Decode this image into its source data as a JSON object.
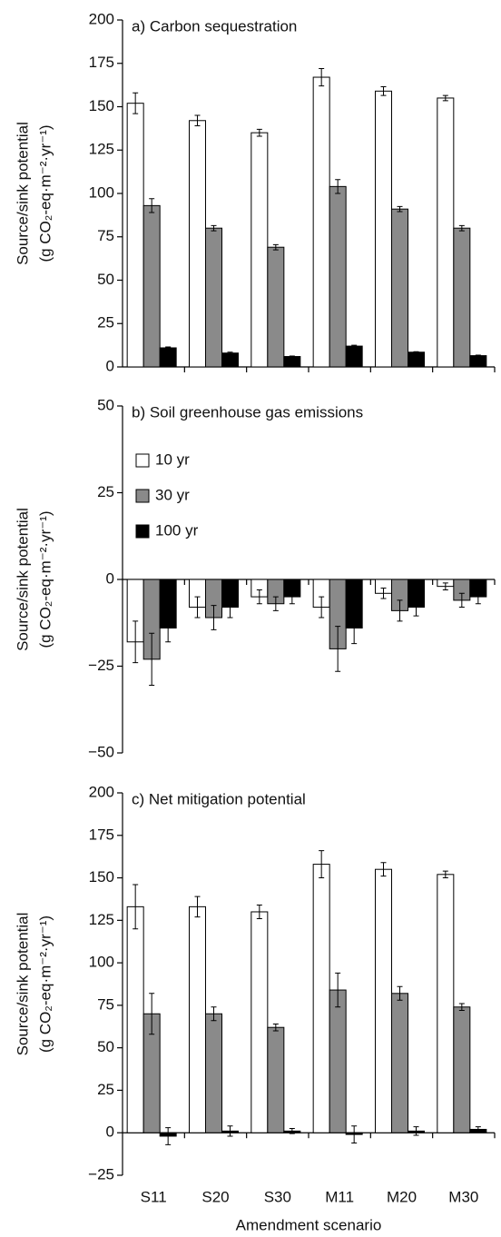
{
  "chart_data": [
    {
      "type": "bar",
      "title": "a) Carbon sequestration",
      "y_label": [
        "Source/sink potential",
        "(g CO₂-eq·m⁻²·yr⁻¹)"
      ],
      "ylim": [
        0,
        200
      ],
      "yticks": [
        0,
        25,
        50,
        75,
        100,
        125,
        150,
        175,
        200
      ],
      "series": [
        {
          "color": "#ffffff",
          "values": [
            152,
            142,
            135,
            167,
            159,
            155
          ],
          "errors": [
            6,
            3,
            2,
            5,
            2.5,
            1.5
          ]
        },
        {
          "color": "#8a8a8a",
          "values": [
            93,
            80,
            69,
            104,
            91,
            80
          ],
          "errors": [
            4,
            1.5,
            1.5,
            4,
            1.5,
            1.5
          ]
        },
        {
          "color": "#000000",
          "values": [
            11,
            8,
            6,
            12,
            8.5,
            6.5
          ],
          "errors": [
            0.5,
            0.5,
            0.3,
            0.5,
            0.3,
            0.3
          ]
        }
      ]
    },
    {
      "type": "bar",
      "title": "b) Soil greenhouse gas emissions",
      "y_label": [
        "Source/sink potential",
        "(g CO₂-eq·m⁻²·yr⁻¹)"
      ],
      "ylim": [
        -50,
        50
      ],
      "yticks": [
        {
          "value": -50,
          "label": "−50"
        },
        {
          "value": -25,
          "label": "−25"
        },
        0,
        25,
        50
      ],
      "legend": "upper left",
      "series": [
        {
          "name": "10 yr",
          "color": "#ffffff",
          "values": [
            -18,
            -8,
            -5,
            -8,
            -4,
            -2
          ],
          "errors": [
            6,
            3,
            2,
            3,
            1.5,
            1
          ]
        },
        {
          "name": "30 yr",
          "color": "#8a8a8a",
          "values": [
            -23,
            -11,
            -7,
            -20,
            -9,
            -6
          ],
          "errors": [
            7.5,
            3.5,
            2,
            6.5,
            3,
            2
          ]
        },
        {
          "name": "100 yr",
          "color": "#000000",
          "values": [
            -14,
            -8,
            -5,
            -14,
            -8,
            -5
          ],
          "errors": [
            4,
            3,
            2,
            4.5,
            2.5,
            2
          ]
        }
      ]
    },
    {
      "type": "bar",
      "title": "c) Net mitigation potential",
      "y_label": [
        "Source/sink potential",
        "(g CO₂-eq·m⁻²·yr⁻¹)"
      ],
      "x_label": "Amendment scenario",
      "categories": [
        "S11",
        "S20",
        "S30",
        "M11",
        "M20",
        "M30"
      ],
      "ylim": [
        -25,
        200
      ],
      "yticks": [
        {
          "value": -25,
          "label": "−25"
        },
        0,
        25,
        50,
        75,
        100,
        125,
        150,
        175,
        200
      ],
      "series": [
        {
          "color": "#ffffff",
          "values": [
            133,
            133,
            130,
            158,
            155,
            152
          ],
          "errors": [
            13,
            6,
            4,
            8,
            4,
            2
          ]
        },
        {
          "color": "#8a8a8a",
          "values": [
            70,
            70,
            62,
            84,
            82,
            74
          ],
          "errors": [
            12,
            4,
            2,
            10,
            4,
            2
          ]
        },
        {
          "color": "#000000",
          "values": [
            -2,
            1,
            1,
            -1,
            1,
            2
          ],
          "errors": [
            5,
            3,
            1.5,
            5,
            2.5,
            1.5
          ]
        }
      ]
    }
  ]
}
